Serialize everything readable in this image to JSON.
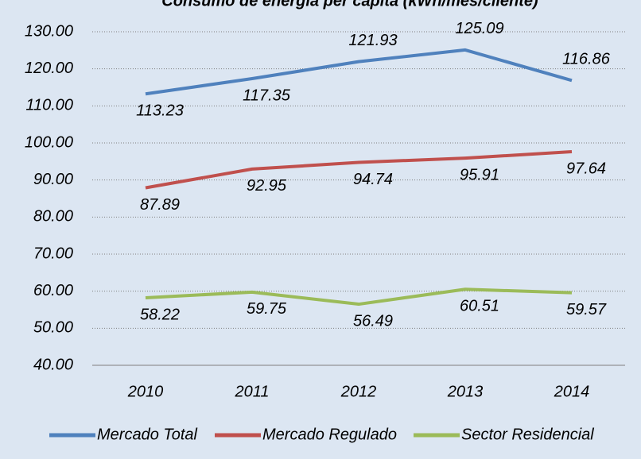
{
  "chart_data": {
    "type": "line",
    "title": "Consumo de energía per cápita (kWh/mes/cliente)",
    "categories": [
      "2010",
      "2011",
      "2012",
      "2013",
      "2014"
    ],
    "series": [
      {
        "name": "Mercado Total",
        "color": "#4f81bd",
        "values": [
          113.23,
          117.35,
          121.93,
          125.09,
          116.86
        ]
      },
      {
        "name": "Mercado Regulado",
        "color": "#c0504d",
        "values": [
          87.89,
          92.95,
          94.74,
          95.91,
          97.64
        ]
      },
      {
        "name": "Sector Residencial",
        "color": "#9bbb59",
        "values": [
          58.22,
          59.75,
          56.49,
          60.51,
          59.57
        ]
      }
    ],
    "ylim": [
      40,
      130
    ],
    "yticks": [
      {
        "value": 40,
        "label": "40.00"
      },
      {
        "value": 50,
        "label": "50.00"
      },
      {
        "value": 60,
        "label": "60.00"
      },
      {
        "value": 70,
        "label": "70.00"
      },
      {
        "value": 80,
        "label": "80.00"
      },
      {
        "value": 90,
        "label": "90.00"
      },
      {
        "value": 100,
        "label": "100.00"
      },
      {
        "value": 110,
        "label": "110.00"
      },
      {
        "value": 120,
        "label": "120.00"
      },
      {
        "value": 130,
        "label": "130.00"
      }
    ],
    "grid": true,
    "legend": "bottom"
  }
}
